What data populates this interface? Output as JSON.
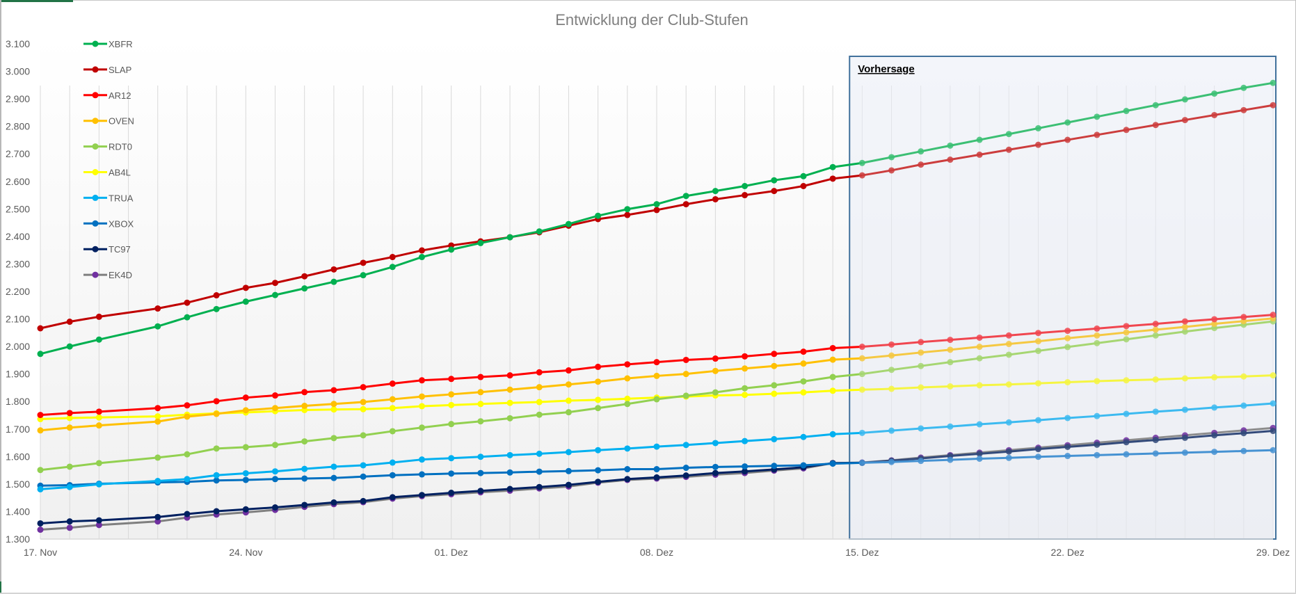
{
  "chart_data": {
    "type": "line",
    "title": "Entwicklung der Club-Stufen",
    "xlabel": "",
    "ylabel": "",
    "ylim": [
      1300,
      3100
    ],
    "yticks": [
      1300,
      1400,
      1500,
      1600,
      1700,
      1800,
      1900,
      2000,
      2100,
      2200,
      2300,
      2400,
      2500,
      2600,
      2700,
      2800,
      2900,
      3000,
      3100
    ],
    "ytick_labels": [
      "1.300",
      "1.400",
      "1.500",
      "1.600",
      "1.700",
      "1.800",
      "1.900",
      "2.000",
      "2.100",
      "2.200",
      "2.300",
      "2.400",
      "2.500",
      "2.600",
      "2.700",
      "2.800",
      "2.900",
      "3.000",
      "3.100"
    ],
    "x_range_days": [
      0,
      42
    ],
    "xticks": [
      {
        "day": 0,
        "label": "17. Nov"
      },
      {
        "day": 7,
        "label": "24. Nov"
      },
      {
        "day": 14,
        "label": "01. Dez"
      },
      {
        "day": 21,
        "label": "08. Dez"
      },
      {
        "day": 28,
        "label": "15. Dez"
      },
      {
        "day": 35,
        "label": "22. Dez"
      },
      {
        "day": 42,
        "label": "29. Dez"
      }
    ],
    "grid": "vertical per day",
    "legend_position": "top-left",
    "forecast": {
      "label": "Vorhersage",
      "start_day": 27.5,
      "end_day": 42,
      "first_forecast_day": 28
    },
    "x_days": [
      0,
      1,
      2,
      4,
      5,
      6,
      7,
      8,
      9,
      10,
      11,
      12,
      13,
      14,
      15,
      16,
      17,
      18,
      19,
      20,
      21,
      22,
      23,
      24,
      25,
      26,
      27,
      28,
      29,
      30,
      31,
      32,
      33,
      34,
      35,
      36,
      37,
      38,
      39,
      40,
      41,
      42
    ],
    "series": [
      {
        "name": "XBFR",
        "color": "#00b050",
        "forecast_color": "#3cbf74",
        "values": [
          1973,
          2000,
          2025,
          2073,
          2106,
          2136,
          2163,
          2187,
          2211,
          2235,
          2259,
          2289,
          2325,
          2352,
          2376,
          2397,
          2418,
          2445,
          2475,
          2499,
          2517,
          2547,
          2565,
          2583,
          2604,
          2619,
          2652,
          2667,
          2688,
          2709,
          2730,
          2751,
          2772,
          2793,
          2814,
          2835,
          2856,
          2877,
          2898,
          2919,
          2940,
          2958
        ]
      },
      {
        "name": "SLAP",
        "color": "#c00000",
        "forecast_color": "#cc3d3d",
        "values": [
          2066,
          2090,
          2108,
          2138,
          2159,
          2186,
          2213,
          2231,
          2255,
          2280,
          2304,
          2325,
          2349,
          2367,
          2382,
          2397,
          2415,
          2439,
          2463,
          2478,
          2496,
          2517,
          2535,
          2550,
          2565,
          2583,
          2610,
          2622,
          2640,
          2661,
          2679,
          2697,
          2715,
          2733,
          2751,
          2769,
          2787,
          2805,
          2823,
          2841,
          2859,
          2877
        ]
      },
      {
        "name": "AR12",
        "color": "#ff0000",
        "forecast_color": "#f0464f",
        "values": [
          1751,
          1758,
          1763,
          1776,
          1786,
          1801,
          1814,
          1822,
          1834,
          1841,
          1852,
          1865,
          1877,
          1882,
          1889,
          1895,
          1906,
          1913,
          1926,
          1935,
          1943,
          1951,
          1956,
          1964,
          1973,
          1981,
          1994,
          1999,
          2007,
          2016,
          2024,
          2032,
          2040,
          2049,
          2057,
          2065,
          2074,
          2082,
          2091,
          2099,
          2107,
          2115
        ]
      },
      {
        "name": "OVEN",
        "color": "#ffc000",
        "forecast_color": "#f5c842",
        "values": [
          1695,
          1705,
          1713,
          1727,
          1745,
          1755,
          1768,
          1776,
          1784,
          1791,
          1798,
          1808,
          1818,
          1826,
          1834,
          1843,
          1852,
          1862,
          1872,
          1884,
          1893,
          1900,
          1911,
          1920,
          1929,
          1938,
          1952,
          1957,
          1967,
          1978,
          1988,
          1999,
          2009,
          2019,
          2030,
          2040,
          2051,
          2061,
          2071,
          2082,
          2092,
          2102
        ]
      },
      {
        "name": "RDT0",
        "color": "#92d050",
        "forecast_color": "#a6d672",
        "values": [
          1551,
          1563,
          1576,
          1596,
          1608,
          1629,
          1634,
          1642,
          1655,
          1667,
          1677,
          1692,
          1705,
          1718,
          1728,
          1739,
          1752,
          1761,
          1776,
          1791,
          1808,
          1821,
          1833,
          1848,
          1859,
          1873,
          1889,
          1900,
          1915,
          1929,
          1943,
          1957,
          1970,
          1984,
          1998,
          2012,
          2026,
          2040,
          2054,
          2067,
          2079,
          2091
        ]
      },
      {
        "name": "AB4L",
        "color": "#ffff00",
        "forecast_color": "#f5f542",
        "values": [
          1736,
          1740,
          1742,
          1746,
          1752,
          1757,
          1760,
          1765,
          1769,
          1771,
          1772,
          1776,
          1783,
          1787,
          1791,
          1795,
          1798,
          1803,
          1806,
          1810,
          1814,
          1818,
          1822,
          1824,
          1828,
          1833,
          1839,
          1843,
          1846,
          1851,
          1855,
          1859,
          1862,
          1866,
          1870,
          1874,
          1877,
          1880,
          1884,
          1888,
          1891,
          1895
        ]
      },
      {
        "name": "TRUA",
        "color": "#00b0f0",
        "forecast_color": "#3cbaf0",
        "values": [
          1481,
          1489,
          1499,
          1511,
          1518,
          1532,
          1539,
          1546,
          1555,
          1563,
          1568,
          1578,
          1589,
          1594,
          1599,
          1605,
          1610,
          1616,
          1623,
          1629,
          1636,
          1642,
          1649,
          1656,
          1663,
          1671,
          1681,
          1686,
          1694,
          1702,
          1709,
          1717,
          1724,
          1732,
          1740,
          1747,
          1755,
          1763,
          1770,
          1778,
          1785,
          1793
        ]
      },
      {
        "name": "XBOX",
        "color": "#0070c0",
        "forecast_color": "#4592d2",
        "values": [
          1494,
          1496,
          1501,
          1506,
          1508,
          1513,
          1515,
          1518,
          1520,
          1522,
          1527,
          1532,
          1535,
          1538,
          1540,
          1542,
          1545,
          1547,
          1550,
          1554,
          1554,
          1559,
          1562,
          1564,
          1566,
          1568,
          1574,
          1577,
          1580,
          1584,
          1588,
          1592,
          1595,
          1599,
          1602,
          1605,
          1608,
          1611,
          1614,
          1617,
          1620,
          1623
        ]
      },
      {
        "name": "TC97",
        "color": "#002060",
        "forecast_color": "#334a7a",
        "values": [
          1357,
          1364,
          1368,
          1380,
          1391,
          1401,
          1408,
          1415,
          1424,
          1433,
          1438,
          1452,
          1460,
          1468,
          1475,
          1482,
          1489,
          1497,
          1508,
          1518,
          1524,
          1531,
          1540,
          1546,
          1553,
          1561,
          1576,
          1577,
          1585,
          1593,
          1602,
          1610,
          1618,
          1627,
          1635,
          1643,
          1652,
          1660,
          1668,
          1677,
          1685,
          1693
        ]
      },
      {
        "name": "EK4D",
        "color": "#7f7f7f",
        "marker_color": "#7030a0",
        "forecast_color": "#8c8c8c",
        "values": [
          1334,
          1341,
          1351,
          1364,
          1378,
          1389,
          1397,
          1406,
          1417,
          1427,
          1434,
          1447,
          1456,
          1463,
          1470,
          1476,
          1484,
          1491,
          1505,
          1515,
          1520,
          1526,
          1534,
          1540,
          1549,
          1557,
          1576,
          1578,
          1586,
          1596,
          1605,
          1614,
          1623,
          1632,
          1641,
          1650,
          1659,
          1668,
          1677,
          1686,
          1695,
          1704
        ]
      }
    ]
  }
}
